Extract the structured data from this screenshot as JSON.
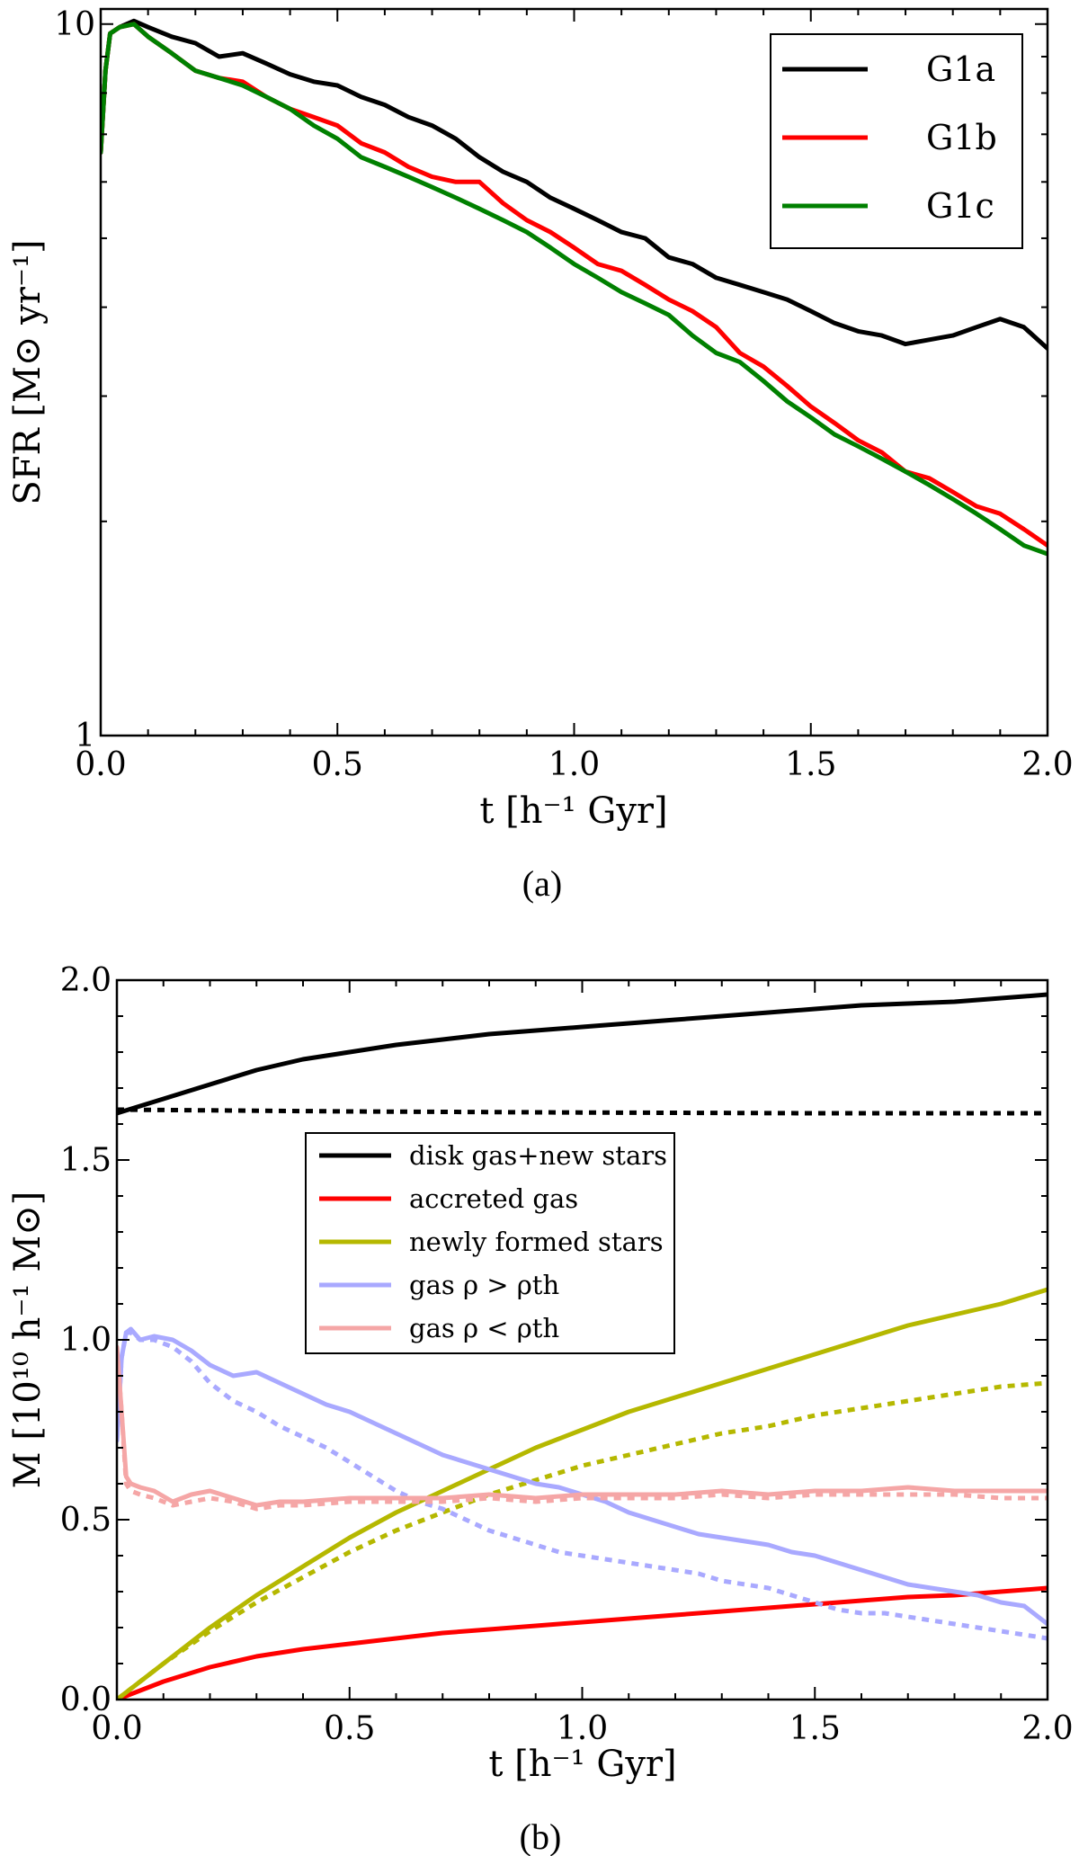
{
  "chart_data": [
    {
      "id": "a",
      "type": "line",
      "caption": "(a)",
      "xlabel": "t [h⁻¹ Gyr]",
      "ylabel": "SFR [M⊙ yr⁻¹]",
      "yscale": "log",
      "xlim": [
        0.0,
        2.0
      ],
      "ylim": [
        1,
        10.5
      ],
      "xticks": [
        0.0,
        0.5,
        1.0,
        1.5,
        2.0
      ],
      "xtick_labels": [
        "0.0",
        "0.5",
        "1.0",
        "1.5",
        "2.0"
      ],
      "yticks": [
        1,
        10
      ],
      "ytick_labels": [
        "1",
        "10"
      ],
      "legend_position": "top-right",
      "series": [
        {
          "name": "G1a",
          "color": "#000000",
          "style": "solid",
          "x": [
            0.0,
            0.01,
            0.02,
            0.04,
            0.07,
            0.1,
            0.15,
            0.2,
            0.25,
            0.3,
            0.35,
            0.4,
            0.45,
            0.5,
            0.55,
            0.6,
            0.65,
            0.7,
            0.75,
            0.8,
            0.85,
            0.9,
            0.95,
            1.0,
            1.05,
            1.1,
            1.15,
            1.2,
            1.25,
            1.3,
            1.35,
            1.4,
            1.45,
            1.5,
            1.55,
            1.6,
            1.65,
            1.7,
            1.75,
            1.8,
            1.85,
            1.9,
            1.95,
            2.0
          ],
          "y": [
            6.6,
            8.6,
            9.7,
            9.9,
            10.1,
            9.9,
            9.6,
            9.4,
            9.0,
            9.1,
            8.8,
            8.5,
            8.3,
            8.2,
            7.9,
            7.7,
            7.4,
            7.2,
            6.9,
            6.5,
            6.2,
            6.0,
            5.7,
            5.5,
            5.3,
            5.1,
            5.0,
            4.7,
            4.6,
            4.4,
            4.3,
            4.2,
            4.1,
            3.95,
            3.8,
            3.7,
            3.65,
            3.55,
            3.6,
            3.65,
            3.75,
            3.85,
            3.75,
            3.5
          ]
        },
        {
          "name": "G1b",
          "color": "#ff0000",
          "style": "solid",
          "x": [
            0.0,
            0.01,
            0.02,
            0.04,
            0.07,
            0.1,
            0.15,
            0.2,
            0.25,
            0.3,
            0.35,
            0.4,
            0.45,
            0.5,
            0.55,
            0.6,
            0.65,
            0.7,
            0.75,
            0.8,
            0.85,
            0.9,
            0.95,
            1.0,
            1.05,
            1.1,
            1.15,
            1.2,
            1.25,
            1.3,
            1.35,
            1.4,
            1.45,
            1.5,
            1.55,
            1.6,
            1.65,
            1.7,
            1.75,
            1.8,
            1.85,
            1.9,
            1.95,
            2.0
          ],
          "y": [
            6.6,
            8.6,
            9.7,
            9.9,
            10.0,
            9.6,
            9.1,
            8.6,
            8.4,
            8.3,
            7.9,
            7.6,
            7.4,
            7.2,
            6.8,
            6.6,
            6.3,
            6.1,
            6.0,
            6.0,
            5.6,
            5.3,
            5.1,
            4.85,
            4.6,
            4.5,
            4.3,
            4.1,
            3.95,
            3.75,
            3.45,
            3.3,
            3.1,
            2.9,
            2.75,
            2.6,
            2.5,
            2.35,
            2.3,
            2.2,
            2.1,
            2.05,
            1.95,
            1.85
          ]
        },
        {
          "name": "G1c",
          "color": "#008000",
          "style": "solid",
          "x": [
            0.0,
            0.01,
            0.02,
            0.04,
            0.07,
            0.1,
            0.15,
            0.2,
            0.25,
            0.3,
            0.35,
            0.4,
            0.45,
            0.5,
            0.55,
            0.6,
            0.65,
            0.7,
            0.75,
            0.8,
            0.85,
            0.9,
            0.95,
            1.0,
            1.05,
            1.1,
            1.15,
            1.2,
            1.25,
            1.3,
            1.35,
            1.4,
            1.45,
            1.5,
            1.55,
            1.6,
            1.65,
            1.7,
            1.75,
            1.8,
            1.85,
            1.9,
            1.95,
            2.0
          ],
          "y": [
            6.6,
            8.6,
            9.7,
            9.9,
            10.0,
            9.6,
            9.1,
            8.6,
            8.4,
            8.2,
            7.9,
            7.6,
            7.2,
            6.9,
            6.5,
            6.3,
            6.1,
            5.9,
            5.7,
            5.5,
            5.3,
            5.1,
            4.85,
            4.6,
            4.4,
            4.2,
            4.05,
            3.9,
            3.65,
            3.45,
            3.35,
            3.15,
            2.95,
            2.8,
            2.65,
            2.55,
            2.45,
            2.35,
            2.25,
            2.15,
            2.05,
            1.95,
            1.85,
            1.8
          ]
        }
      ]
    },
    {
      "id": "b",
      "type": "line",
      "caption": "(b)",
      "xlabel": "t [h⁻¹ Gyr]",
      "ylabel": "M [10¹⁰ h⁻¹ M⊙]",
      "xlim": [
        0.0,
        2.0
      ],
      "ylim": [
        0.0,
        2.0
      ],
      "xticks": [
        0.0,
        0.5,
        1.0,
        1.5,
        2.0
      ],
      "xtick_labels": [
        "0.0",
        "0.5",
        "1.0",
        "1.5",
        "2.0"
      ],
      "yticks": [
        0.0,
        0.5,
        1.0,
        1.5,
        2.0
      ],
      "ytick_labels": [
        "0.0",
        "0.5",
        "1.0",
        "1.5",
        "2.0"
      ],
      "legend_position": "center-left",
      "legend": [
        {
          "label": "disk gas+new stars",
          "color": "#000000"
        },
        {
          "label": "accreted gas",
          "color": "#ff0000"
        },
        {
          "label": "newly formed stars",
          "color": "#b5b800"
        },
        {
          "label": "gas ρ > ρth",
          "color": "#a9a9ff"
        },
        {
          "label": "gas ρ < ρth",
          "color": "#f5a6a6"
        }
      ],
      "series": [
        {
          "name": "disk gas+new stars",
          "color": "#000000",
          "style": "solid",
          "x": [
            0.0,
            0.1,
            0.2,
            0.3,
            0.4,
            0.5,
            0.6,
            0.7,
            0.8,
            0.9,
            1.0,
            1.1,
            1.2,
            1.3,
            1.4,
            1.5,
            1.6,
            1.7,
            1.8,
            1.9,
            2.0
          ],
          "y": [
            1.63,
            1.67,
            1.71,
            1.75,
            1.78,
            1.8,
            1.82,
            1.835,
            1.85,
            1.86,
            1.87,
            1.88,
            1.89,
            1.9,
            1.91,
            1.92,
            1.93,
            1.935,
            1.94,
            1.95,
            1.96
          ]
        },
        {
          "name": "disk gas+new stars (dotted)",
          "color": "#000000",
          "style": "dotted",
          "x": [
            0.0,
            0.5,
            1.0,
            1.5,
            2.0
          ],
          "y": [
            1.64,
            1.635,
            1.632,
            1.63,
            1.63
          ]
        },
        {
          "name": "accreted gas",
          "color": "#ff0000",
          "style": "solid",
          "x": [
            0.0,
            0.05,
            0.1,
            0.2,
            0.3,
            0.4,
            0.5,
            0.6,
            0.7,
            0.8,
            0.9,
            1.0,
            1.1,
            1.2,
            1.3,
            1.4,
            1.5,
            1.6,
            1.7,
            1.8,
            1.9,
            2.0
          ],
          "y": [
            0.0,
            0.025,
            0.05,
            0.09,
            0.12,
            0.14,
            0.155,
            0.17,
            0.185,
            0.195,
            0.205,
            0.215,
            0.225,
            0.235,
            0.245,
            0.255,
            0.265,
            0.275,
            0.285,
            0.29,
            0.3,
            0.31
          ]
        },
        {
          "name": "newly formed stars",
          "color": "#b5b800",
          "style": "solid",
          "x": [
            0.0,
            0.1,
            0.2,
            0.3,
            0.4,
            0.5,
            0.6,
            0.7,
            0.8,
            0.9,
            1.0,
            1.1,
            1.2,
            1.3,
            1.4,
            1.5,
            1.6,
            1.7,
            1.8,
            1.9,
            2.0
          ],
          "y": [
            0.0,
            0.1,
            0.2,
            0.29,
            0.37,
            0.45,
            0.52,
            0.58,
            0.64,
            0.7,
            0.75,
            0.8,
            0.84,
            0.88,
            0.92,
            0.96,
            1.0,
            1.04,
            1.07,
            1.1,
            1.14
          ]
        },
        {
          "name": "newly formed stars (dotted)",
          "color": "#b5b800",
          "style": "dotted",
          "x": [
            0.0,
            0.1,
            0.2,
            0.3,
            0.4,
            0.5,
            0.6,
            0.7,
            0.8,
            0.9,
            1.0,
            1.1,
            1.2,
            1.3,
            1.4,
            1.5,
            1.6,
            1.7,
            1.8,
            1.9,
            2.0
          ],
          "y": [
            0.0,
            0.1,
            0.19,
            0.27,
            0.34,
            0.41,
            0.47,
            0.52,
            0.57,
            0.61,
            0.65,
            0.68,
            0.71,
            0.74,
            0.76,
            0.79,
            0.81,
            0.83,
            0.85,
            0.87,
            0.88
          ]
        },
        {
          "name": "gas ρ > ρth",
          "color": "#a9a9ff",
          "style": "solid",
          "x": [
            0.0,
            0.01,
            0.02,
            0.03,
            0.05,
            0.08,
            0.12,
            0.16,
            0.2,
            0.25,
            0.3,
            0.35,
            0.4,
            0.45,
            0.5,
            0.55,
            0.6,
            0.65,
            0.7,
            0.75,
            0.8,
            0.85,
            0.9,
            0.95,
            1.0,
            1.05,
            1.1,
            1.15,
            1.2,
            1.25,
            1.3,
            1.35,
            1.4,
            1.45,
            1.5,
            1.55,
            1.6,
            1.65,
            1.7,
            1.75,
            1.8,
            1.85,
            1.9,
            1.95,
            2.0
          ],
          "y": [
            0.72,
            0.95,
            1.02,
            1.03,
            1.0,
            1.01,
            1.0,
            0.97,
            0.93,
            0.9,
            0.91,
            0.88,
            0.85,
            0.82,
            0.8,
            0.77,
            0.74,
            0.71,
            0.68,
            0.66,
            0.64,
            0.62,
            0.6,
            0.59,
            0.57,
            0.55,
            0.52,
            0.5,
            0.48,
            0.46,
            0.45,
            0.44,
            0.43,
            0.41,
            0.4,
            0.38,
            0.36,
            0.34,
            0.32,
            0.31,
            0.3,
            0.29,
            0.27,
            0.26,
            0.21
          ]
        },
        {
          "name": "gas ρ > ρth (dotted)",
          "color": "#a9a9ff",
          "style": "dotted",
          "x": [
            0.0,
            0.01,
            0.02,
            0.03,
            0.05,
            0.08,
            0.12,
            0.16,
            0.2,
            0.25,
            0.3,
            0.35,
            0.4,
            0.45,
            0.5,
            0.55,
            0.6,
            0.65,
            0.7,
            0.75,
            0.8,
            0.85,
            0.9,
            0.95,
            1.0,
            1.05,
            1.1,
            1.15,
            1.2,
            1.25,
            1.3,
            1.35,
            1.4,
            1.45,
            1.5,
            1.55,
            1.6,
            1.65,
            1.7,
            1.75,
            1.8,
            1.85,
            1.9,
            1.95,
            2.0
          ],
          "y": [
            0.72,
            0.95,
            1.02,
            1.02,
            1.0,
            1.0,
            0.98,
            0.94,
            0.88,
            0.83,
            0.8,
            0.76,
            0.73,
            0.7,
            0.66,
            0.62,
            0.58,
            0.55,
            0.53,
            0.5,
            0.47,
            0.45,
            0.43,
            0.41,
            0.4,
            0.39,
            0.38,
            0.37,
            0.36,
            0.35,
            0.33,
            0.32,
            0.31,
            0.29,
            0.27,
            0.25,
            0.24,
            0.24,
            0.23,
            0.22,
            0.21,
            0.2,
            0.19,
            0.18,
            0.17
          ]
        },
        {
          "name": "gas ρ < ρth",
          "color": "#f5a6a6",
          "style": "solid",
          "x": [
            0.0,
            0.01,
            0.02,
            0.03,
            0.05,
            0.08,
            0.12,
            0.16,
            0.2,
            0.25,
            0.3,
            0.35,
            0.4,
            0.5,
            0.6,
            0.7,
            0.8,
            0.9,
            1.0,
            1.1,
            1.2,
            1.3,
            1.4,
            1.5,
            1.6,
            1.7,
            1.8,
            1.9,
            2.0
          ],
          "y": [
            0.98,
            0.8,
            0.62,
            0.6,
            0.59,
            0.58,
            0.55,
            0.57,
            0.58,
            0.56,
            0.54,
            0.55,
            0.55,
            0.56,
            0.56,
            0.56,
            0.57,
            0.56,
            0.57,
            0.57,
            0.57,
            0.58,
            0.57,
            0.58,
            0.58,
            0.59,
            0.58,
            0.58,
            0.58
          ]
        },
        {
          "name": "gas ρ < ρth (dotted)",
          "color": "#f5a6a6",
          "style": "dotted",
          "x": [
            0.0,
            0.01,
            0.02,
            0.03,
            0.05,
            0.08,
            0.12,
            0.16,
            0.2,
            0.25,
            0.3,
            0.35,
            0.4,
            0.5,
            0.6,
            0.7,
            0.8,
            0.9,
            1.0,
            1.1,
            1.2,
            1.3,
            1.4,
            1.5,
            1.6,
            1.7,
            1.8,
            1.9,
            2.0
          ],
          "y": [
            0.98,
            0.8,
            0.6,
            0.58,
            0.57,
            0.56,
            0.54,
            0.55,
            0.56,
            0.55,
            0.53,
            0.54,
            0.54,
            0.55,
            0.55,
            0.55,
            0.56,
            0.55,
            0.56,
            0.56,
            0.56,
            0.57,
            0.56,
            0.57,
            0.57,
            0.57,
            0.57,
            0.56,
            0.56
          ]
        }
      ]
    }
  ]
}
